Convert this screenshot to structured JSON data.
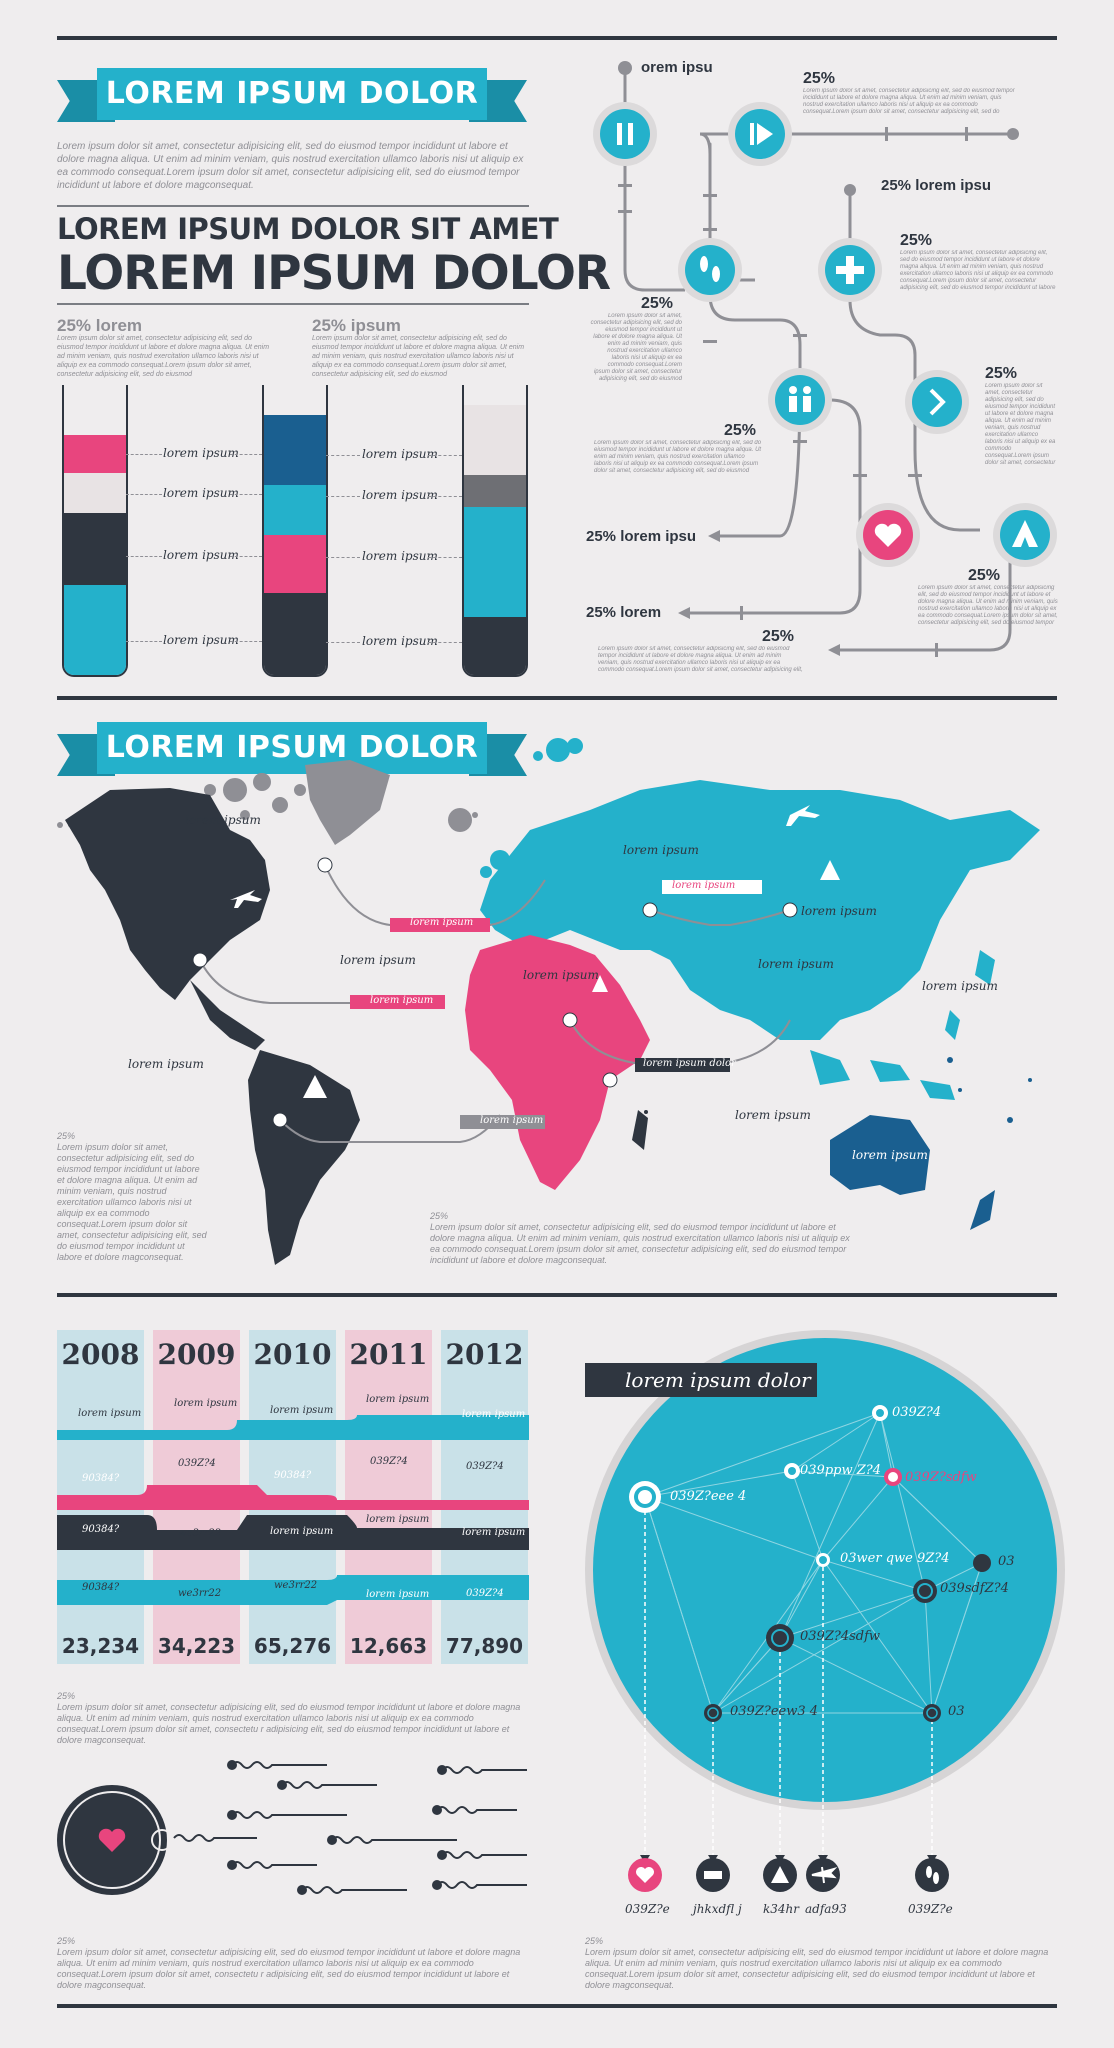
{
  "section1": {
    "ribbon_title": "LOREM IPSUM DOLOR",
    "intro": "Lorem ipsum dolor sit amet, consectetur adipisicing elit, sed do eiusmod tempor incididunt ut labore et dolore magna aliqua. Ut enim ad minim veniam, quis nostrud exercitation ullamco laboris nisi ut aliquip ex ea commodo consequat.Lorem ipsum dolor sit amet, consectetur adipisicing elit, sed do eiusmod tempor incididunt ut labore et dolore magconsequat.",
    "heading_line1": "LOREM IPSUM DOLOR SIT AMET",
    "heading_line2": "LOREM IPSUM DOLOR",
    "stat1_title": "25% lorem",
    "stat2_title": "25% ipsum",
    "stat_text": "Lorem ipsum dolor sit amet, consectetur adipisicing elit, sed do eiusmod tempor incididunt ut labore et dolore magna aliqua. Ut enim ad minim veniam, quis nostrud exercitation ullamco laboris nisi ut aliquip ex ea commodo consequat.Lorem ipsum dolor sit amet, consectetur adipisicing elit, sed do eiusmod",
    "tube_label": "lorem ipsum"
  },
  "flow": {
    "start_label": "orem ipsu",
    "pct": "25%",
    "label_right": "25%  lorem ipsu",
    "out1": "25%  lorem ipsu",
    "out2": "25%  lorem",
    "small_text": "Lorem ipsum dolor sit amet, consectetur adipisicing elit, sed do eiusmod tempor incididunt ut labore et dolore magna aliqua. Ut enim ad minim veniam, quis nostrud exercitation ullamco laboris nisi ut aliquip ex ea commodo consequat.Lorem ipsum dolor sit amet, consectetur adipisicing elit, sed do eiusmod tempor incididunt ut labore et dolore magconsequat."
  },
  "map": {
    "ribbon_title": "LOREM IPSUM DOLOR",
    "label": "lorem ipsum",
    "pill": "lorem ipsum",
    "pill_dark": "lorem ipsum dolor",
    "pct": "25%",
    "left_text": "Lorem ipsum dolor sit amet, consectetur adipisicing elit, sed do eiusmod tempor incididunt ut labore et dolore magna aliqua. Ut enim ad minim veniam, quis nostrud exercitation ullamco laboris nisi ut aliquip ex ea commodo consequat.Lorem ipsum dolor sit amet, consectetur adipisicing elit, sed do eiusmod tempor incididunt ut labore et dolore magconsequat.",
    "bottom_text": "Lorem ipsum dolor sit amet, consectetur adipisicing elit, sed do eiusmod tempor incididunt ut labore et dolore magna aliqua. Ut enim ad minim veniam, quis nostrud exercitation ullamco laboris nisi ut aliquip ex ea commodo consequat.Lorem ipsum dolor sit amet, consectetur adipisicing elit, sed do eiusmod tempor incididunt ut labore et dolore magconsequat."
  },
  "timeline": {
    "years": [
      "2008",
      "2009",
      "2010",
      "2011",
      "2012"
    ],
    "totals": [
      "23,234",
      "34,223",
      "65,276",
      "12,663",
      "77,890"
    ],
    "band_label": "lorem ipsum",
    "codes": [
      "90384?",
      "039Z?4",
      "we3rr22"
    ],
    "pct": "25%",
    "text": "Lorem ipsum dolor sit amet, consectetur adipisicing elit, sed do eiusmod tempor incididunt ut labore et dolore magna aliqua. Ut enim ad minim veniam, quis nostrud exercitation ullamco laboris nisi ut aliquip ex ea commodo consequat.Lorem ipsum dolor sit amet, consectetu r adipisicing elit, sed do eiusmod tempor incididunt ut labore et dolore magconsequat.",
    "bottom_text": "Lorem ipsum dolor sit amet, consectetur adipisicing elit, sed do eiusmod tempor incididunt ut labore et dolore magna aliqua. Ut enim ad minim veniam, quis nostrud exercitation ullamco laboris nisi ut aliquip ex ea commodo consequat.Lorem ipsum dolor sit amet, consectetu r adipisicing elit, sed do eiusmod tempor incididunt ut labore et dolore magconsequat."
  },
  "network": {
    "title": "lorem ipsum dolor",
    "nodes": [
      "039Z?4",
      "039ppw Z?4",
      "039Z?sdfw",
      "039Z?eee 4",
      "03wer qwe 9Z?4",
      "03",
      "039sdfZ?4",
      "039Z?4sdfw",
      "039Z?eew3 4",
      "03"
    ],
    "icon_labels": [
      "039Z?e",
      "jhkxdfl j",
      "k34hr",
      "adfa93",
      "039Z?e"
    ],
    "pct": "25%",
    "text": "Lorem ipsum dolor sit amet, consectetur adipisicing elit, sed do eiusmod tempor incididunt ut labore et dolore magna aliqua. Ut enim ad minim veniam, quis nostrud exercitation ullamco laboris nisi ut aliquip ex ea commodo consequat.Lorem ipsum dolor sit amet, consectetur adipisicing elit, sed do eiusmod tempor incididunt ut labore et dolore magconsequat."
  },
  "colors": {
    "teal": "#24b1cb",
    "pink": "#e8457e",
    "dark": "#2f3640",
    "gray": "#8f8f95",
    "background": "#efedee"
  }
}
